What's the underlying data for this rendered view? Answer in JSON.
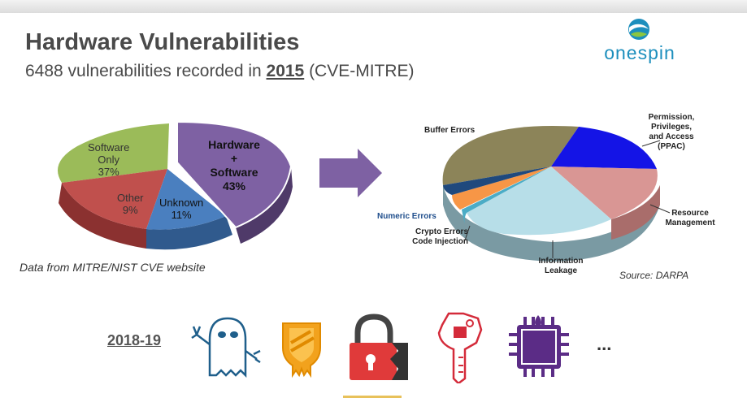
{
  "slide": {
    "title": "Hardware Vulnerabilities",
    "subtitle_prefix": "6488 vulnerabilities recorded in ",
    "subtitle_year": "2015",
    "subtitle_suffix": " (CVE-MITRE)"
  },
  "logo": {
    "text": "onespin",
    "icon": "onespin-logo-icon"
  },
  "left_pie": {
    "caption": "Data from MITRE/NIST CVE website",
    "slices": [
      {
        "label_line1": "Hardware",
        "label_line2": "+",
        "label_line3": "Software",
        "value_label": "43%",
        "color": "#7e61a3"
      },
      {
        "label_line1": "Unknown",
        "value_label": "11%",
        "color": "#4a7fbf"
      },
      {
        "label_line1": "Other",
        "value_label": "9%",
        "color": "#c0504d"
      },
      {
        "label_line1": "Software",
        "label_line2": "Only",
        "value_label": "37%",
        "color": "#9bbb59"
      }
    ]
  },
  "arrow": {
    "icon": "right-arrow-icon",
    "color": "#7e61a3"
  },
  "right_pie": {
    "source": "Source: DARPA",
    "labels": {
      "buffer": "Buffer Errors",
      "ppac_1": "Permission,",
      "ppac_2": "Privileges,",
      "ppac_3": "and Access",
      "ppac_4": "(PPAC)",
      "resource_1": "Resource",
      "resource_2": "Management",
      "info_1": "Information",
      "info_2": "Leakage",
      "numeric": "Numeric Errors",
      "crypto": "Crypto Errors",
      "code": "Code Injection"
    },
    "colors": {
      "buffer": "#8c8459",
      "ppac": "#1414e6",
      "resource": "#d99694",
      "info": "#b7dee8",
      "code": "#4bacc6",
      "crypto": "#f79646",
      "numeric": "#1f497d"
    }
  },
  "timeline": {
    "period": "2018-19",
    "icons": [
      "spectre-ghost-icon",
      "meltdown-shield-icon",
      "broken-padlock-icon",
      "foreshadow-key-icon",
      "mds-chip-icon"
    ],
    "ellipsis": "..."
  }
}
